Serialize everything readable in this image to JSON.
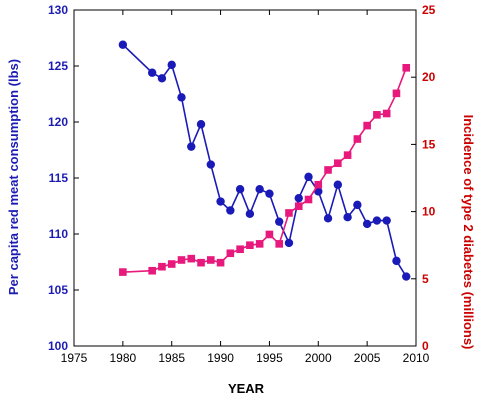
{
  "chart_data": {
    "type": "line",
    "xlabel": "YEAR",
    "ylabel_left": "Per capita red meat consumption (lbs)",
    "ylabel_right": "Incidence of type 2 diabetes (millions)",
    "xlim": [
      1975,
      2010
    ],
    "xticks": [
      1975,
      1980,
      1985,
      1990,
      1995,
      2000,
      2005,
      2010
    ],
    "ylim_left": [
      100,
      130
    ],
    "yticks_left": [
      100,
      105,
      110,
      115,
      120,
      125,
      130
    ],
    "ylim_right": [
      0,
      25
    ],
    "yticks_right": [
      0,
      5,
      10,
      15,
      20,
      25
    ],
    "grid": false,
    "colors": {
      "left_axis": "#1c1cb4",
      "right_axis": "#cc0000",
      "meat": "#1a1ab8",
      "diabetes": "#e8197d"
    },
    "series": [
      {
        "id": "meat",
        "axis": "left",
        "marker": "circle",
        "points": [
          [
            1980,
            126.9
          ],
          [
            1983,
            124.4
          ],
          [
            1984,
            123.9
          ],
          [
            1985,
            125.1
          ],
          [
            1986,
            122.2
          ],
          [
            1987,
            117.8
          ],
          [
            1988,
            119.8
          ],
          [
            1989,
            116.2
          ],
          [
            1990,
            112.9
          ],
          [
            1991,
            112.1
          ],
          [
            1992,
            114.0
          ],
          [
            1993,
            111.8
          ],
          [
            1994,
            114.0
          ],
          [
            1995,
            113.6
          ],
          [
            1996,
            111.1
          ],
          [
            1997,
            109.2
          ],
          [
            1998,
            113.2
          ],
          [
            1999,
            115.1
          ],
          [
            2000,
            113.8
          ],
          [
            2001,
            111.4
          ],
          [
            2002,
            114.4
          ],
          [
            2003,
            111.5
          ],
          [
            2004,
            112.6
          ],
          [
            2005,
            110.9
          ],
          [
            2006,
            111.2
          ],
          [
            2007,
            111.2
          ],
          [
            2008,
            107.6
          ],
          [
            2009,
            106.2
          ]
        ]
      },
      {
        "id": "diabetes",
        "axis": "right",
        "marker": "square",
        "points": [
          [
            1980,
            5.5
          ],
          [
            1983,
            5.6
          ],
          [
            1984,
            5.9
          ],
          [
            1985,
            6.1
          ],
          [
            1986,
            6.4
          ],
          [
            1987,
            6.5
          ],
          [
            1988,
            6.2
          ],
          [
            1989,
            6.4
          ],
          [
            1990,
            6.2
          ],
          [
            1991,
            6.9
          ],
          [
            1992,
            7.2
          ],
          [
            1993,
            7.5
          ],
          [
            1994,
            7.6
          ],
          [
            1995,
            8.3
          ],
          [
            1996,
            7.6
          ],
          [
            1997,
            9.9
          ],
          [
            1998,
            10.4
          ],
          [
            1999,
            10.9
          ],
          [
            2000,
            12.0
          ],
          [
            2001,
            13.1
          ],
          [
            2002,
            13.6
          ],
          [
            2003,
            14.2
          ],
          [
            2004,
            15.4
          ],
          [
            2005,
            16.4
          ],
          [
            2006,
            17.2
          ],
          [
            2007,
            17.3
          ],
          [
            2008,
            18.8
          ],
          [
            2009,
            20.7
          ]
        ]
      }
    ]
  }
}
